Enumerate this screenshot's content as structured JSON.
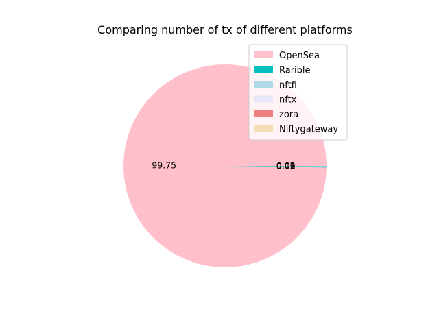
{
  "chart_data": {
    "type": "pie",
    "title": "Comparing number of tx of different platforms",
    "categories": [
      "OpenSea",
      "Rarible",
      "nftfi",
      "nftx",
      "zora",
      "Niftygateway"
    ],
    "values": [
      99.75,
      0.19,
      0.02,
      0.02,
      0.01,
      0.01
    ],
    "value_labels": [
      "99.75",
      "0.19",
      "0.02",
      "0.02",
      "0.01",
      "0.01"
    ],
    "colors": [
      "#ffc0cb",
      "#00bfbf",
      "#add8e6",
      "#e6e6fa",
      "#f08080",
      "#f5deb3"
    ],
    "start_angle_deg": 0,
    "direction": "counterclockwise",
    "legend_position": "top-right"
  }
}
